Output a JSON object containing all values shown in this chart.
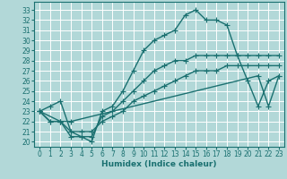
{
  "xlabel": "Humidex (Indice chaleur)",
  "xlim": [
    -0.5,
    23.5
  ],
  "ylim": [
    19.5,
    33.8
  ],
  "xticks": [
    0,
    1,
    2,
    3,
    4,
    5,
    6,
    7,
    8,
    9,
    10,
    11,
    12,
    13,
    14,
    15,
    16,
    17,
    18,
    19,
    20,
    21,
    22,
    23
  ],
  "yticks": [
    20,
    21,
    22,
    23,
    24,
    25,
    26,
    27,
    28,
    29,
    30,
    31,
    32,
    33
  ],
  "background_color": "#b2d8d8",
  "grid_color": "#ffffff",
  "line_color": "#1a7070",
  "lines": [
    {
      "x": [
        0,
        1,
        2,
        3,
        4,
        5,
        6,
        7,
        8,
        9,
        10,
        11,
        12,
        13,
        14,
        15,
        16,
        17,
        18,
        19,
        20,
        21,
        22,
        23
      ],
      "y": [
        23,
        23.5,
        24,
        21,
        20.5,
        20,
        23,
        23.5,
        25,
        27,
        29,
        30,
        30.5,
        31,
        32.5,
        33,
        32,
        32,
        31.5,
        28.5,
        26,
        23.5,
        26,
        26.5
      ]
    },
    {
      "x": [
        0,
        1,
        2,
        3,
        4,
        5,
        6,
        7,
        8,
        9,
        10,
        11,
        12,
        13,
        14,
        15,
        16,
        17,
        18,
        19,
        20,
        21,
        22,
        23
      ],
      "y": [
        23,
        22,
        22,
        20.5,
        20.5,
        20.5,
        22.5,
        23,
        24,
        25,
        26,
        27,
        27.5,
        28,
        28,
        28.5,
        28.5,
        28.5,
        28.5,
        28.5,
        28.5,
        28.5,
        28.5,
        28.5
      ]
    },
    {
      "x": [
        0,
        1,
        2,
        3,
        4,
        5,
        6,
        7,
        8,
        9,
        10,
        11,
        12,
        13,
        14,
        15,
        16,
        17,
        18,
        19,
        20,
        21,
        22,
        23
      ],
      "y": [
        23,
        22,
        22,
        21,
        21,
        21,
        22,
        22.5,
        23,
        24,
        24.5,
        25,
        25.5,
        26,
        26.5,
        27,
        27,
        27,
        27.5,
        27.5,
        27.5,
        27.5,
        27.5,
        27.5
      ]
    },
    {
      "x": [
        0,
        2,
        3,
        21,
        22,
        23
      ],
      "y": [
        23,
        22,
        22,
        26.5,
        23.5,
        26.5
      ]
    }
  ],
  "marker": "+",
  "markersize": 4,
  "linewidth": 1.0,
  "tick_fontsize": 5.5,
  "xlabel_fontsize": 6.5
}
